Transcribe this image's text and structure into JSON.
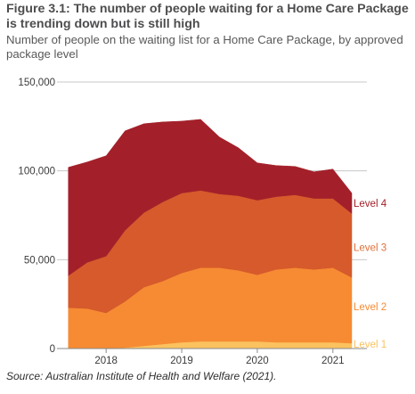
{
  "title": "Figure 3.1: The number of people waiting for a Home Care Package is trending down but is still high",
  "subtitle": "Number of people on the waiting list for a Home Care Package, by approved package level",
  "source": "Source: Australian Institute of Health and Welfare (2021).",
  "chart_data": {
    "type": "area",
    "stacked": true,
    "x": [
      2017.5,
      2017.75,
      2018.0,
      2018.25,
      2018.5,
      2018.75,
      2019.0,
      2019.25,
      2019.5,
      2019.75,
      2020.0,
      2020.25,
      2020.5,
      2020.75,
      2021.0,
      2021.25
    ],
    "xticks": [
      2018,
      2019,
      2020,
      2021
    ],
    "xtick_labels": [
      "2018",
      "2019",
      "2020",
      "2021"
    ],
    "ylim": [
      0,
      150000
    ],
    "yticks": [
      0,
      50000,
      100000,
      150000
    ],
    "ytick_labels": [
      "0",
      "50,000",
      "100,000",
      "150,000"
    ],
    "grid": true,
    "series": [
      {
        "name": "Level 1",
        "color": "#fbc25f",
        "label_color": "#fbc25f",
        "values": [
          0,
          0,
          0,
          500,
          1500,
          2500,
          3500,
          4000,
          4000,
          4000,
          4000,
          3500,
          3500,
          3500,
          3500,
          3000
        ]
      },
      {
        "name": "Level 2",
        "color": "#f68b33",
        "label_color": "#f68b33",
        "values": [
          23000,
          22500,
          20000,
          26000,
          33000,
          35500,
          39000,
          41500,
          41500,
          40000,
          37500,
          41000,
          42000,
          41000,
          42000,
          37000
        ]
      },
      {
        "name": "Level 3",
        "color": "#d65a2b",
        "label_color": "#e0703a",
        "values": [
          18000,
          26000,
          32000,
          40000,
          42000,
          44500,
          45000,
          43500,
          41500,
          42000,
          42000,
          41000,
          41000,
          40000,
          39000,
          36000
        ]
      },
      {
        "name": "Level 4",
        "color": "#a3202a",
        "label_color": "#a3202a",
        "values": [
          61000,
          56500,
          56500,
          56000,
          50000,
          45000,
          40500,
          40000,
          32000,
          27000,
          21000,
          17500,
          16000,
          15000,
          16500,
          11500
        ]
      }
    ]
  }
}
